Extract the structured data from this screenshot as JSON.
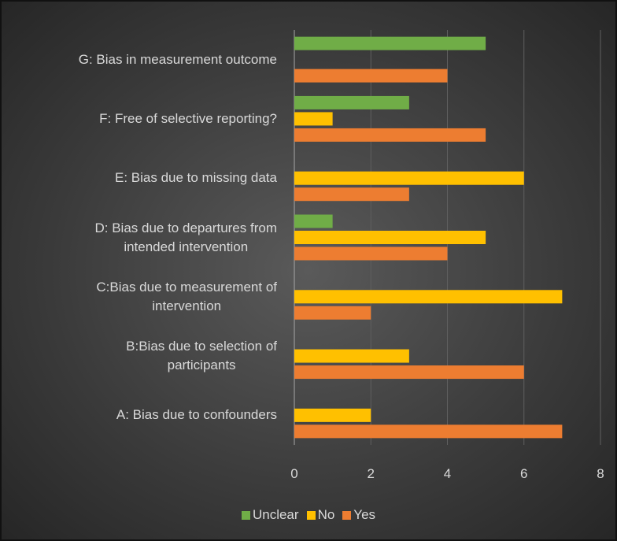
{
  "chart_data": {
    "type": "bar",
    "orientation": "horizontal",
    "categories": [
      "A: Bias due to  confounders",
      "B:Bias due to selection of \nparticipants",
      "C:Bias due to measurement of \nintervention",
      "D: Bias due to departures from \nintended  intervention",
      "E: Bias due to missing data",
      "F: Free of selective reporting?",
      "G: Bias in measurement outcome"
    ],
    "series": [
      {
        "name": "Unclear",
        "color": "#70ad47",
        "values": [
          0,
          0,
          0,
          1,
          0,
          3,
          5
        ]
      },
      {
        "name": "No",
        "color": "#ffc000",
        "values": [
          2,
          3,
          7,
          5,
          6,
          1,
          0
        ]
      },
      {
        "name": "Yes",
        "color": "#ed7d31",
        "values": [
          7,
          6,
          2,
          4,
          3,
          5,
          4
        ]
      }
    ],
    "xlim": [
      0,
      8
    ],
    "xticks": [
      0,
      2,
      4,
      6,
      8
    ],
    "grid": true,
    "legend": "bottom"
  }
}
